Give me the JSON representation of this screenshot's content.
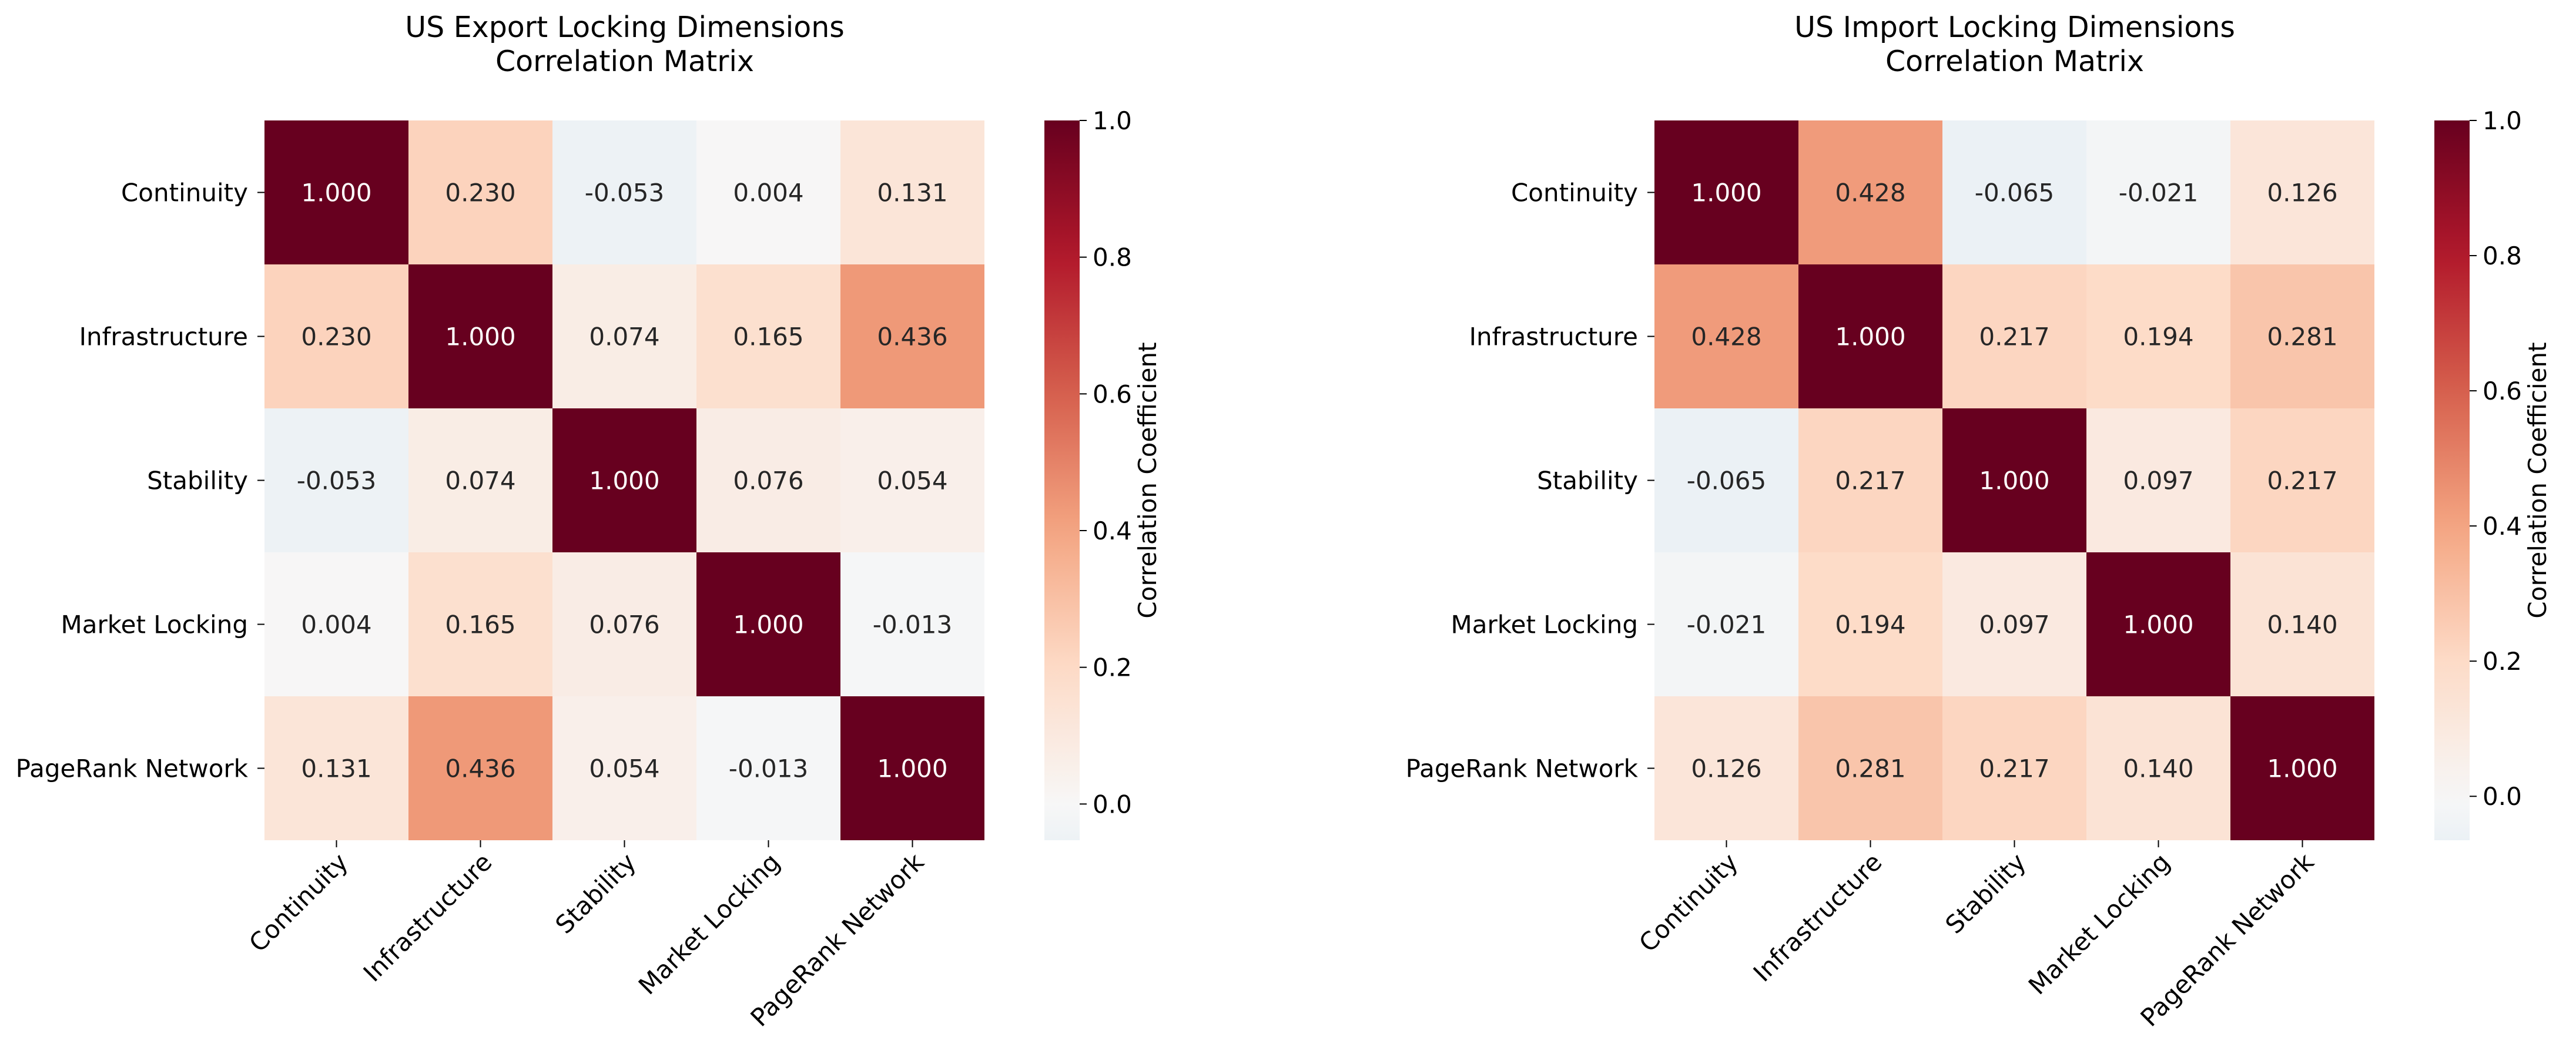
{
  "chart_data": [
    {
      "type": "heatmap",
      "title_lines": [
        "US Export Locking Dimensions",
        "Correlation Matrix"
      ],
      "categories": [
        "Continuity",
        "Infrastructure",
        "Stability",
        "Market Locking",
        "PageRank Network"
      ],
      "values": [
        [
          1.0,
          0.23,
          -0.053,
          0.004,
          0.131
        ],
        [
          0.23,
          1.0,
          0.074,
          0.165,
          0.436
        ],
        [
          -0.053,
          0.074,
          1.0,
          0.076,
          0.054
        ],
        [
          0.004,
          0.165,
          0.076,
          1.0,
          -0.013
        ],
        [
          0.131,
          0.436,
          0.054,
          -0.013,
          1.0
        ]
      ],
      "cell_labels": [
        [
          "1.000",
          "0.230",
          "-0.053",
          "0.004",
          "0.131"
        ],
        [
          "0.230",
          "1.000",
          "0.074",
          "0.165",
          "0.436"
        ],
        [
          "-0.053",
          "0.074",
          "1.000",
          "0.076",
          "0.054"
        ],
        [
          "0.004",
          "0.165",
          "0.076",
          "1.000",
          "-0.013"
        ],
        [
          "0.131",
          "0.436",
          "0.054",
          "-0.013",
          "1.000"
        ]
      ],
      "colorbar": {
        "label": "Correlation Coefficient",
        "range": [
          -0.053,
          1.0
        ],
        "ticks": [
          0.0,
          0.2,
          0.4,
          0.6,
          0.8,
          1.0
        ],
        "tick_labels": [
          "0.0",
          "0.2",
          "0.4",
          "0.6",
          "0.8",
          "1.0"
        ],
        "colormap": "RdBu_r"
      }
    },
    {
      "type": "heatmap",
      "title_lines": [
        "US Import Locking Dimensions",
        "Correlation Matrix"
      ],
      "categories": [
        "Continuity",
        "Infrastructure",
        "Stability",
        "Market Locking",
        "PageRank Network"
      ],
      "values": [
        [
          1.0,
          0.428,
          -0.065,
          -0.021,
          0.126
        ],
        [
          0.428,
          1.0,
          0.217,
          0.194,
          0.281
        ],
        [
          -0.065,
          0.217,
          1.0,
          0.097,
          0.217
        ],
        [
          -0.021,
          0.194,
          0.097,
          1.0,
          0.14
        ],
        [
          0.126,
          0.281,
          0.217,
          0.14,
          1.0
        ]
      ],
      "cell_labels": [
        [
          "1.000",
          "0.428",
          "-0.065",
          "-0.021",
          "0.126"
        ],
        [
          "0.428",
          "1.000",
          "0.217",
          "0.194",
          "0.281"
        ],
        [
          "-0.065",
          "0.217",
          "1.000",
          "0.097",
          "0.217"
        ],
        [
          "-0.021",
          "0.194",
          "0.097",
          "1.000",
          "0.140"
        ],
        [
          "0.126",
          "0.281",
          "0.217",
          "0.140",
          "1.000"
        ]
      ],
      "colorbar": {
        "label": "Correlation Coefficient",
        "range": [
          -0.065,
          1.0
        ],
        "ticks": [
          0.0,
          0.2,
          0.4,
          0.6,
          0.8,
          1.0
        ],
        "tick_labels": [
          "0.0",
          "0.2",
          "0.4",
          "0.6",
          "0.8",
          "1.0"
        ],
        "colormap": "RdBu_r"
      }
    }
  ]
}
